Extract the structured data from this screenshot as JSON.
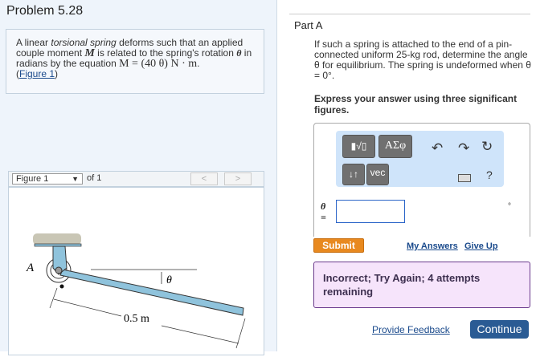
{
  "problem": {
    "title": "Problem 5.28",
    "text_parts": [
      "A linear ",
      "torsional spring",
      " deforms such that an applied couple moment ",
      "M",
      " is related to the spring's rotation ",
      "θ",
      " in radians by the equation ",
      "M = (40 θ) N · m",
      "."
    ],
    "figure_link": "Figure 1"
  },
  "figure": {
    "select": "Figure 1",
    "of": "of 1",
    "prev": "<",
    "next": ">",
    "label_A": "A",
    "label_theta": "θ",
    "label_length": "0.5 m",
    "colors": {
      "rod": "#8fc3dc"
    }
  },
  "part": {
    "title": "Part A",
    "question": "If such a spring is attached to the end of a pin-connected uniform 25-kg rod, determine the angle θ for equilibrium. The spring is undeformed when θ = 0°.",
    "instruction": "Express your answer using three significant figures."
  },
  "toolbar": {
    "templates": "▮√▯",
    "greek": "ΑΣφ",
    "updown": "↓↑",
    "vec": "vec",
    "help": "?",
    "icons": [
      "undo-icon",
      "redo-icon",
      "reset-icon",
      "keyboard-icon"
    ]
  },
  "answer": {
    "label": "θ =",
    "value": "",
    "unit": "°"
  },
  "actions": {
    "submit": "Submit",
    "my_answers": "My Answers",
    "give_up": "Give Up",
    "provide_feedback": "Provide Feedback",
    "continue": "Continue"
  },
  "feedback": {
    "message": "Incorrect; Try Again; 4 attempts remaining"
  }
}
